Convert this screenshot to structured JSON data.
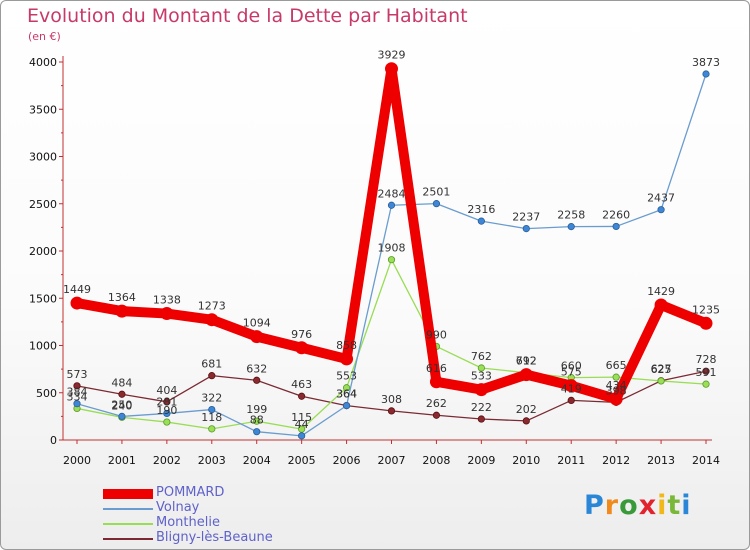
{
  "title": "Evolution du Montant de la Dette par Habitant",
  "unit": "(en €)",
  "logo_text": "Proxiti",
  "chart_data": {
    "type": "line",
    "title": "Evolution du Montant de la Dette par Habitant",
    "subtitle": "(en €)",
    "xlabel": "",
    "ylabel": "",
    "categories": [
      "2000",
      "2001",
      "2002",
      "2003",
      "2004",
      "2005",
      "2006",
      "2007",
      "2008",
      "2009",
      "2010",
      "2011",
      "2012",
      "2013",
      "2014"
    ],
    "ylim": [
      0,
      4000
    ],
    "yticks": [
      0,
      500,
      1000,
      1500,
      2000,
      2500,
      3000,
      3500,
      4000
    ],
    "grid": false,
    "legend": "bottom-left",
    "series": [
      {
        "name": "POMMARD",
        "color": "#ee0000",
        "values": [
          1449,
          1364,
          1338,
          1273,
          1094,
          976,
          858,
          3929,
          616,
          533,
          692,
          575,
          434,
          1429,
          1235
        ]
      },
      {
        "name": "Volnay",
        "color": "#6a9ccf",
        "values": [
          384,
          250,
          281,
          322,
          88,
          44,
          364,
          2484,
          2501,
          2316,
          2237,
          2258,
          2260,
          2437,
          3873
        ]
      },
      {
        "name": "Monthelie",
        "color": "#99dd55",
        "values": [
          334,
          240,
          190,
          118,
          199,
          115,
          553,
          1908,
          990,
          762,
          712,
          660,
          665,
          625,
          591
        ]
      },
      {
        "name": "Bligny-lès-Beaune",
        "color": "#7b2a33",
        "values": [
          573,
          484,
          404,
          681,
          632,
          463,
          364,
          308,
          262,
          222,
          202,
          419,
          398,
          627,
          728
        ]
      }
    ]
  }
}
